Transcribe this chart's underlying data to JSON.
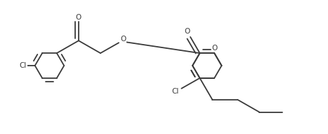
{
  "bg_color": "#ffffff",
  "line_color": "#3a3a3a",
  "lw": 1.3,
  "fs": 7.5,
  "figsize": [
    4.67,
    1.92
  ],
  "dpi": 100,
  "xlim": [
    0,
    46.7
  ],
  "ylim": [
    0,
    19.2
  ],
  "labels": {
    "Cl1": "Cl",
    "Cl2": "Cl",
    "O1": "O",
    "O2": "O",
    "O3": "O"
  }
}
